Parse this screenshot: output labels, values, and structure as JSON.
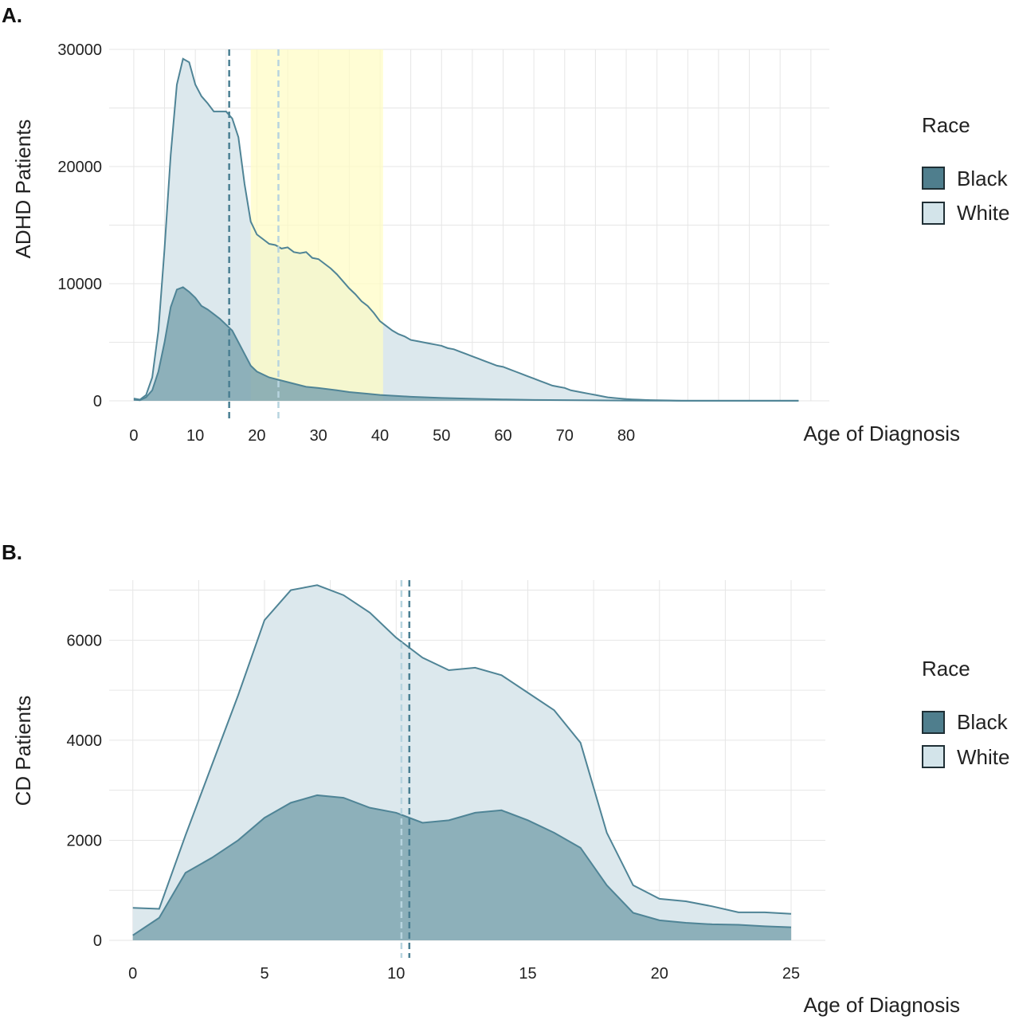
{
  "colors": {
    "black_fill": "#7fa6b0",
    "white_fill": "#dce8ed",
    "line": "#4f8496",
    "highlight": "#fffcc4",
    "black_mean": "#4a7f92",
    "white_mean": "#b7d4df",
    "grid": "#e6e6e6",
    "legend_black": "#4f7e8d",
    "legend_white": "#d3e4ea"
  },
  "chart_data": [
    {
      "panel_label": "A.",
      "type": "area",
      "xlabel": "Age of Diagnosis",
      "ylabel": "ADHD Patients",
      "xlim": [
        -4,
        113
      ],
      "ylim": [
        0,
        30000
      ],
      "xticks": [
        0,
        10,
        20,
        30,
        40,
        50,
        60,
        70,
        80
      ],
      "yticks": [
        0,
        10000,
        20000,
        30000
      ],
      "grid": true,
      "legend": {
        "title": "Race",
        "position": "right",
        "entries": [
          "Black",
          "White"
        ]
      },
      "highlight_range": [
        19,
        40.5
      ],
      "means": {
        "Black": 15.5,
        "White": 23.5
      },
      "series": [
        {
          "name": "White",
          "x": [
            0,
            1,
            2,
            3,
            4,
            5,
            6,
            7,
            8,
            9,
            10,
            11,
            12,
            13,
            14,
            15,
            16,
            17,
            18,
            19,
            20,
            21,
            22,
            23,
            24,
            25,
            26,
            27,
            28,
            29,
            30,
            31,
            32,
            33,
            34,
            35,
            36,
            37,
            38,
            39,
            40,
            41,
            42,
            43,
            44,
            45,
            46,
            47,
            48,
            49,
            50,
            51,
            52,
            53,
            54,
            55,
            56,
            57,
            58,
            59,
            60,
            61,
            62,
            63,
            64,
            65,
            66,
            67,
            68,
            69,
            70,
            71,
            72,
            73,
            74,
            75,
            76,
            77,
            78,
            79,
            80,
            81,
            82,
            83,
            84,
            85,
            86,
            87,
            88,
            89,
            90,
            95,
            100,
            108
          ],
          "values": [
            200,
            100,
            500,
            2000,
            6000,
            13000,
            21000,
            27000,
            29200,
            28900,
            27000,
            26000,
            25400,
            24700,
            24700,
            24700,
            24100,
            22500,
            18500,
            15300,
            14200,
            13800,
            13400,
            13300,
            13000,
            13100,
            12700,
            12600,
            12700,
            12200,
            12100,
            11700,
            11300,
            10800,
            10200,
            9600,
            9100,
            8500,
            8100,
            7500,
            6800,
            6400,
            6000,
            5700,
            5500,
            5200,
            5100,
            5000,
            4900,
            4800,
            4700,
            4500,
            4400,
            4200,
            4000,
            3800,
            3600,
            3400,
            3200,
            3000,
            2900,
            2700,
            2500,
            2300,
            2100,
            1900,
            1700,
            1500,
            1300,
            1200,
            1100,
            900,
            800,
            700,
            600,
            500,
            400,
            300,
            250,
            200,
            150,
            120,
            100,
            80,
            60,
            50,
            40,
            30,
            20,
            10,
            5,
            5,
            5,
            5
          ]
        },
        {
          "name": "Black",
          "x": [
            0,
            1,
            2,
            3,
            4,
            5,
            6,
            7,
            8,
            9,
            10,
            11,
            12,
            13,
            14,
            15,
            16,
            17,
            18,
            19,
            20,
            22,
            25,
            28,
            30,
            33,
            35,
            38,
            40,
            45,
            50,
            55,
            60,
            65,
            70,
            75,
            80,
            85,
            90,
            95,
            100,
            108
          ],
          "values": [
            100,
            50,
            300,
            900,
            2500,
            5000,
            8000,
            9500,
            9700,
            9300,
            8800,
            8100,
            7800,
            7400,
            7000,
            6500,
            6000,
            5000,
            4000,
            3000,
            2500,
            2000,
            1600,
            1200,
            1100,
            900,
            750,
            600,
            500,
            350,
            250,
            180,
            120,
            80,
            60,
            40,
            25,
            15,
            10,
            5,
            5,
            5
          ]
        }
      ]
    },
    {
      "panel_label": "B.",
      "type": "area",
      "xlabel": "Age of Diagnosis",
      "ylabel": "CD Patients",
      "xlim": [
        -0.9,
        26.3
      ],
      "ylim": [
        0,
        7200
      ],
      "xticks": [
        0,
        5,
        10,
        15,
        20,
        25
      ],
      "yticks": [
        0,
        2000,
        4000,
        6000
      ],
      "grid": true,
      "legend": {
        "title": "Race",
        "position": "right",
        "entries": [
          "Black",
          "White"
        ]
      },
      "means": {
        "Black": 10.5,
        "White": 10.2
      },
      "series": [
        {
          "name": "White",
          "x": [
            0,
            1,
            2,
            3,
            4,
            5,
            6,
            7,
            8,
            9,
            10,
            11,
            12,
            13,
            14,
            15,
            16,
            17,
            18,
            19,
            20,
            21,
            22,
            23,
            24,
            25
          ],
          "values": [
            650,
            630,
            2100,
            3500,
            4900,
            6400,
            7000,
            7100,
            6900,
            6550,
            6050,
            5650,
            5400,
            5450,
            5300,
            4950,
            4600,
            3950,
            2150,
            1100,
            830,
            780,
            680,
            560,
            560,
            530
          ]
        },
        {
          "name": "Black",
          "x": [
            0,
            1,
            2,
            3,
            4,
            5,
            6,
            7,
            8,
            9,
            10,
            11,
            12,
            13,
            14,
            15,
            16,
            17,
            18,
            19,
            20,
            21,
            22,
            23,
            24,
            25
          ],
          "values": [
            100,
            450,
            1350,
            1650,
            2000,
            2450,
            2750,
            2900,
            2850,
            2650,
            2550,
            2350,
            2400,
            2550,
            2600,
            2400,
            2150,
            1850,
            1100,
            550,
            400,
            350,
            320,
            310,
            280,
            260
          ]
        }
      ]
    }
  ]
}
